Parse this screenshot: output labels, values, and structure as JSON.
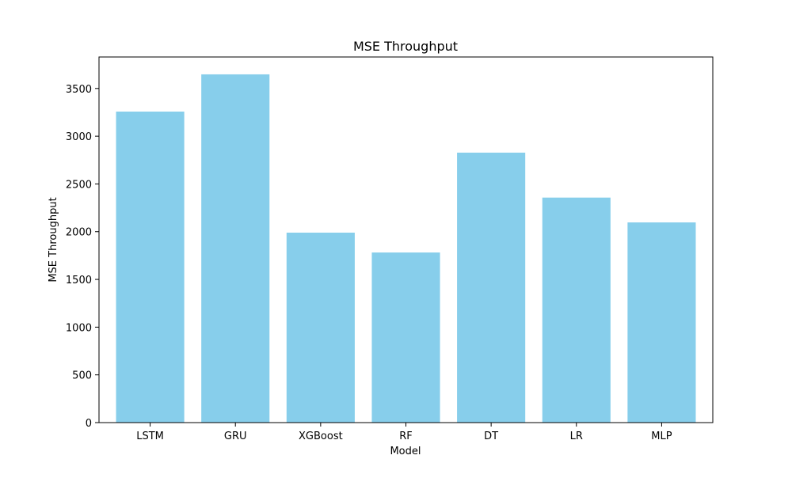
{
  "chart_data": {
    "type": "bar",
    "title": "MSE Throughput",
    "xlabel": "Model",
    "ylabel": "MSE Throughput",
    "categories": [
      "LSTM",
      "GRU",
      "XGBoost",
      "RF",
      "DT",
      "LR",
      "MLP"
    ],
    "values": [
      3258,
      3648,
      1990,
      1782,
      2828,
      2357,
      2097
    ],
    "ylim": [
      0,
      3830
    ],
    "yticks": [
      0,
      500,
      1000,
      1500,
      2000,
      2500,
      3000,
      3500
    ],
    "bar_color": "#87ceeb",
    "grid": false,
    "legend": "none"
  }
}
